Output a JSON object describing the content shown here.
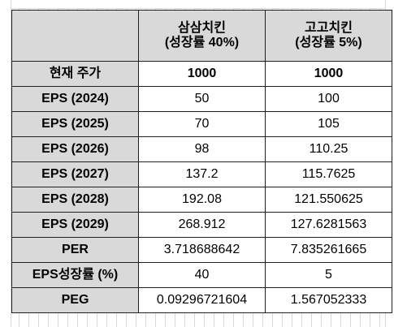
{
  "table": {
    "header": {
      "col1_line1": "삼삼치킨",
      "col1_line2": "(성장률 40%)",
      "col2_line1": "고고치킨",
      "col2_line2": "(성장률 5%)"
    },
    "rows": [
      {
        "label": "현재 주가",
        "v1": "1000",
        "v2": "1000"
      },
      {
        "label": "EPS (2024)",
        "v1": "50",
        "v2": "100"
      },
      {
        "label": "EPS (2025)",
        "v1": "70",
        "v2": "105"
      },
      {
        "label": "EPS (2026)",
        "v1": "98",
        "v2": "110.25"
      },
      {
        "label": "EPS (2027)",
        "v1": "137.2",
        "v2": "115.7625"
      },
      {
        "label": "EPS (2028)",
        "v1": "192.08",
        "v2": "121.550625"
      },
      {
        "label": "EPS (2029)",
        "v1": "268.912",
        "v2": "127.6281563"
      },
      {
        "label": "PER",
        "v1": "3.718688642",
        "v2": "7.835261665"
      },
      {
        "label": "EPS성장률 (%)",
        "v1": "40",
        "v2": "5"
      },
      {
        "label": "PEG",
        "v1": "0.09296721604",
        "v2": "1.567052333"
      }
    ]
  },
  "colors": {
    "header_fill": "#d9d9d9",
    "border": "#1f1f1f",
    "gridline": "#d9d9d9"
  }
}
